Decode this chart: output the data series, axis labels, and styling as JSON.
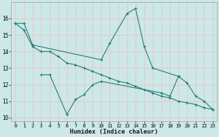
{
  "xlabel": "Humidex (Indice chaleur)",
  "ylabel": "",
  "background_color": "#cce8e8",
  "grid_color": "#e8c8c8",
  "line_color": "#1a7a6e",
  "x_values": [
    0,
    1,
    2,
    3,
    4,
    5,
    6,
    7,
    8,
    9,
    10,
    11,
    12,
    13,
    14,
    15,
    16,
    17,
    18,
    19,
    20,
    21,
    22,
    23
  ],
  "series1": [
    15.7,
    15.7,
    14.4,
    null,
    null,
    null,
    null,
    null,
    null,
    null,
    13.5,
    14.5,
    null,
    16.3,
    16.6,
    14.3,
    13.0,
    null,
    null,
    12.5,
    12.1,
    11.3,
    11.0,
    10.5
  ],
  "series2": [
    null,
    null,
    null,
    12.6,
    12.6,
    null,
    10.2,
    11.1,
    11.4,
    12.0,
    12.2,
    null,
    null,
    null,
    null,
    null,
    null,
    11.5,
    11.3,
    12.5,
    null,
    null,
    null,
    null
  ],
  "series3": [
    15.7,
    15.3,
    14.3,
    14.0,
    14.0,
    13.7,
    13.3,
    13.2,
    13.0,
    12.8,
    12.6,
    12.4,
    12.2,
    12.1,
    11.9,
    11.7,
    11.5,
    11.3,
    11.2,
    11.0,
    10.9,
    10.8,
    10.6,
    10.5
  ],
  "ylim": [
    9.8,
    17.0
  ],
  "xlim": [
    -0.5,
    23.5
  ],
  "yticks": [
    10,
    11,
    12,
    13,
    14,
    15,
    16
  ],
  "xticks": [
    0,
    1,
    2,
    3,
    4,
    5,
    6,
    7,
    8,
    9,
    10,
    11,
    12,
    13,
    14,
    15,
    16,
    17,
    18,
    19,
    20,
    21,
    22,
    23
  ],
  "tick_fontsize": 5.0,
  "xlabel_fontsize": 6.5,
  "ylabel_fontsize": 6.5,
  "linewidth": 0.8,
  "markersize": 2.5
}
